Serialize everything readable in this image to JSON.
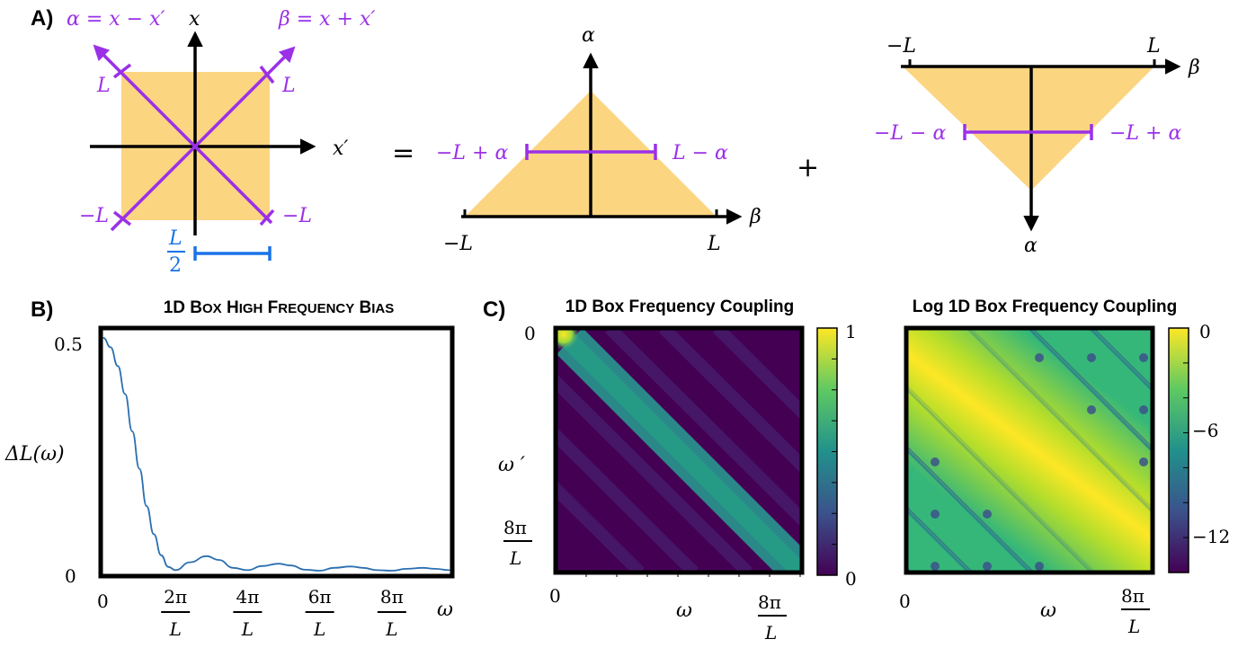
{
  "panel_labels": {
    "A": "A)",
    "B": "B)",
    "C": "C)"
  },
  "colors": {
    "region": "#fcd581",
    "axis_purple": "#9b30e8",
    "scale_blue": "#1a73e8",
    "curve": "#2a6fb0",
    "frame": "#000000"
  },
  "diagram": {
    "alpha_def": "α = x − x′",
    "beta_def": "β = x + x′",
    "x_axis": "x′",
    "y_axis": "x",
    "L_upper_left": "L",
    "L_upper_right": "L",
    "L_lower_left": "−L",
    "L_lower_right": "−L",
    "half_L_num": "L",
    "half_L_den": "2",
    "equals": "=",
    "plus": "+",
    "tri1": {
      "alpha_axis": "α",
      "beta_axis": "β",
      "left_span": "−L + α",
      "right_span": "L − α",
      "min": "−L",
      "max": "L"
    },
    "tri2": {
      "alpha_axis": "α",
      "beta_axis": "β",
      "left_span": "−L − α",
      "right_span": "−L + α",
      "min": "−L",
      "max": "L"
    }
  },
  "plot_b": {
    "title_big1": "1D B",
    "title_small1": "OX",
    "title_big2": " H",
    "title_small2": "IGH",
    "title_big3": " F",
    "title_small3": "REQUENCY",
    "title_big4": " B",
    "title_small4": "IAS",
    "ylabel": "ΔL(ω)",
    "xlabel": "ω",
    "y_ticks": [
      "0.5",
      "0"
    ],
    "x_tick_zero": "0",
    "x_ticks_num": [
      "2π",
      "4π",
      "6π",
      "8π"
    ],
    "x_ticks_den": "L"
  },
  "plot_c1": {
    "title": "1D Box Frequency Coupling",
    "xlabel": "ω",
    "ylabel": "ω ′",
    "y_tick_zero": "0",
    "y_tick_num": "8π",
    "y_tick_den": "L",
    "x_tick_zero": "0",
    "x_tick_num": "8π",
    "x_tick_den": "L",
    "cbar_ticks": [
      "1",
      "0"
    ]
  },
  "plot_c2": {
    "title": "Log 1D Box Frequency Coupling",
    "xlabel": "ω",
    "x_tick_zero": "0",
    "x_tick_num": "8π",
    "x_tick_den": "L",
    "cbar_ticks": [
      "0",
      "−6",
      "−12"
    ]
  },
  "chart_data": [
    {
      "type": "line",
      "title": "1D Box High Frequency Bias",
      "xlabel": "ω",
      "ylabel": "ΔL(ω)",
      "x_range_units_of_2pi_over_L": [
        0,
        4.8
      ],
      "ylim": [
        0,
        0.5
      ],
      "series": [
        {
          "x": [
            0,
            0.1,
            0.2,
            0.3,
            0.4,
            0.5,
            0.6,
            0.7,
            0.8,
            0.9,
            1.0,
            1.2,
            1.43,
            1.6,
            1.8,
            2.0,
            2.2,
            2.43,
            2.6,
            2.8,
            3.0,
            3.2,
            3.43,
            3.6,
            3.8,
            4.0,
            4.2,
            4.43,
            4.6,
            4.8
          ],
          "y": [
            0.5,
            0.48,
            0.44,
            0.38,
            0.3,
            0.22,
            0.14,
            0.08,
            0.035,
            0.01,
            0.003,
            0.02,
            0.033,
            0.025,
            0.008,
            0.003,
            0.012,
            0.017,
            0.013,
            0.004,
            0.002,
            0.008,
            0.011,
            0.008,
            0.003,
            0.002,
            0.006,
            0.008,
            0.006,
            0.003
          ]
        }
      ]
    },
    {
      "type": "heatmap",
      "title": "1D Box Frequency Coupling",
      "xlabel": "ω",
      "ylabel": "ω ′",
      "colorbar_range": [
        0,
        1
      ],
      "colormap": "viridis"
    },
    {
      "type": "heatmap",
      "title": "Log 1D Box Frequency Coupling",
      "xlabel": "ω",
      "colorbar_range": [
        -14,
        0
      ],
      "colorbar_ticks": [
        0,
        -6,
        -12
      ],
      "colormap": "viridis"
    }
  ]
}
